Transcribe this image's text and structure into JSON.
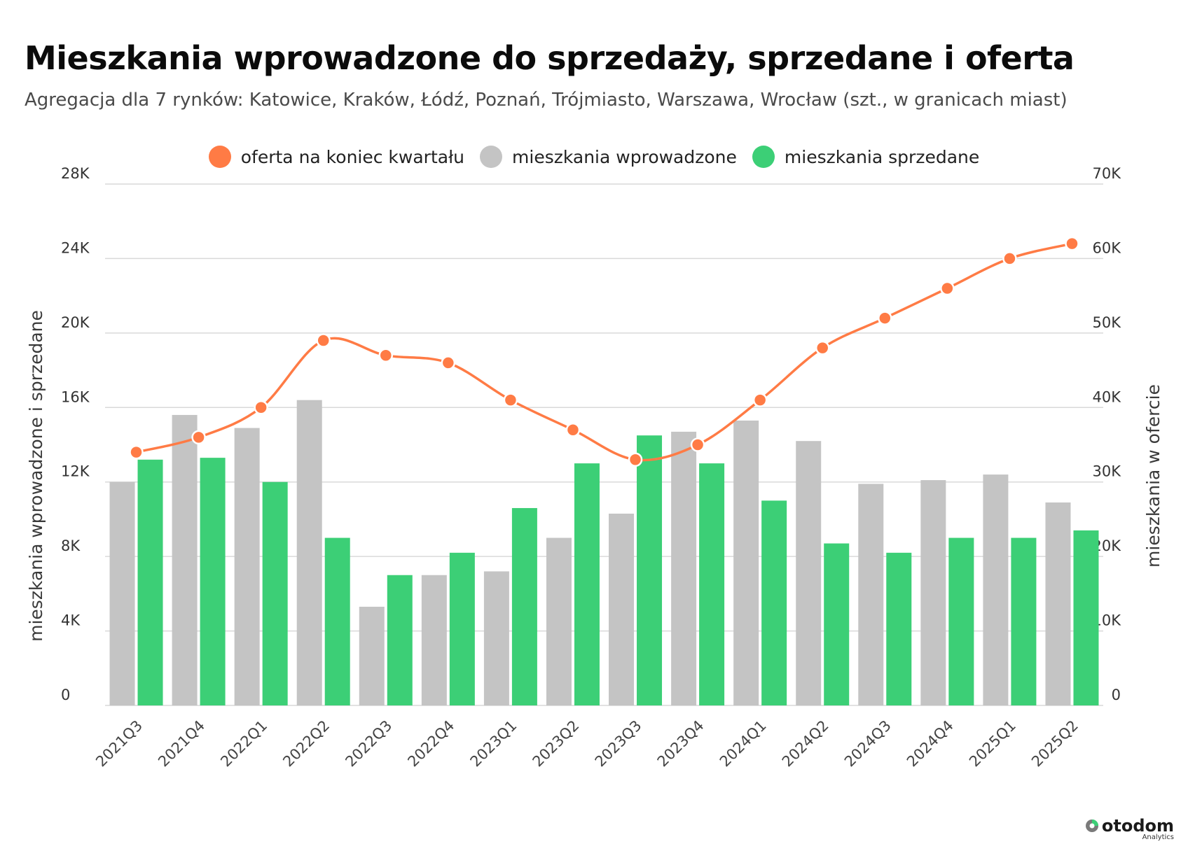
{
  "title": "Mieszkania wprowadzone do sprzedaży, sprzedane i oferta",
  "subtitle": "Agregacja dla 7 rynków: Katowice, Kraków, Łódź, Poznań, Trójmiasto, Warszawa, Wrocław (szt., w granicach miast)",
  "logo": {
    "name": "otodom",
    "sub": "Analytics"
  },
  "colors": {
    "offer": "#ff7b45",
    "introduced": "#c4c4c4",
    "sold": "#3ccf76",
    "grid": "#d9d9d9"
  },
  "chart_data": {
    "type": "bar",
    "categories": [
      "2021Q3",
      "2021Q4",
      "2022Q1",
      "2022Q2",
      "2022Q3",
      "2022Q4",
      "2023Q1",
      "2023Q2",
      "2023Q3",
      "2023Q4",
      "2024Q1",
      "2024Q2",
      "2024Q3",
      "2024Q4",
      "2025Q1",
      "2025Q2"
    ],
    "series": [
      {
        "name": "oferta na koniec kwartału",
        "type": "line",
        "axis": "right",
        "values": [
          34000,
          36000,
          40000,
          49000,
          47000,
          46000,
          41000,
          37000,
          33000,
          35000,
          41000,
          48000,
          52000,
          56000,
          60000,
          62000
        ]
      },
      {
        "name": "mieszkania wprowadzone",
        "type": "bar",
        "axis": "left",
        "values": [
          12000,
          15600,
          14900,
          16400,
          5300,
          7000,
          7200,
          9000,
          10300,
          14700,
          15300,
          14200,
          11900,
          12100,
          12400,
          10900
        ]
      },
      {
        "name": "mieszkania sprzedane",
        "type": "bar",
        "axis": "left",
        "values": [
          13200,
          13300,
          12000,
          9000,
          7000,
          8200,
          10600,
          13000,
          14500,
          13000,
          11000,
          8700,
          8200,
          9000,
          9000,
          9400
        ]
      }
    ],
    "ylabel": "mieszkania wprowadzone i sprzedane",
    "y2label": "mieszkania w ofercie",
    "ylim": [
      0,
      28000
    ],
    "y2lim": [
      0,
      70000
    ],
    "yticks": [
      "0",
      "4K",
      "8K",
      "12K",
      "16K",
      "20K",
      "24K",
      "28K"
    ],
    "y2ticks": [
      "0",
      "10K",
      "20K",
      "30K",
      "40K",
      "50K",
      "60K",
      "70K"
    ],
    "grid": true,
    "legend": "top-center"
  }
}
